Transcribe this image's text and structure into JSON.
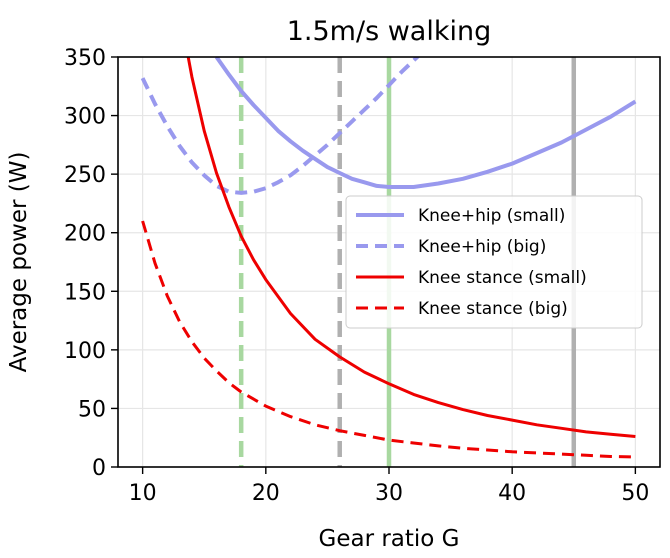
{
  "chart_data": {
    "type": "line",
    "title": "1.5m/s walking",
    "xlabel": "Gear ratio G",
    "ylabel": "Average power (W)",
    "xlim": [
      8,
      52
    ],
    "ylim": [
      0,
      350
    ],
    "xticks": [
      10,
      20,
      30,
      40,
      50
    ],
    "yticks": [
      0,
      50,
      100,
      150,
      200,
      250,
      300,
      350
    ],
    "grid": true,
    "legend": {
      "placement": "center-right"
    },
    "series": [
      {
        "name": "Knee+hip (small)",
        "color": "#9999ee",
        "style": "solid",
        "x": [
          16,
          17,
          18,
          19,
          20,
          21,
          22,
          23,
          24,
          25,
          26,
          27,
          28,
          29,
          30,
          31,
          32,
          34,
          36,
          38,
          40,
          42,
          44,
          46,
          48,
          50
        ],
        "y": [
          350,
          335,
          321,
          309,
          298,
          287,
          278,
          270,
          263,
          256,
          251,
          246,
          243,
          240,
          239,
          239,
          239,
          242,
          246,
          252,
          259,
          268,
          277,
          288,
          299,
          312
        ]
      },
      {
        "name": "Knee+hip (big)",
        "color": "#9999ee",
        "style": "dashed",
        "x": [
          10,
          11,
          12,
          13,
          14,
          15,
          16,
          17,
          18,
          19,
          20,
          21,
          22,
          23,
          24,
          25,
          26,
          27,
          28,
          29,
          30,
          31,
          32,
          33
        ],
        "y": [
          332,
          310,
          291,
          274,
          260,
          249,
          240,
          235,
          234,
          235,
          238,
          243,
          249,
          257,
          266,
          275,
          285,
          295,
          305,
          315,
          326,
          337,
          347,
          357
        ]
      },
      {
        "name": "Knee stance (small)",
        "color": "#ee0000",
        "style": "solid",
        "x": [
          13.7,
          14,
          15,
          16,
          17,
          18,
          19,
          20,
          22,
          24,
          26,
          28,
          30,
          32,
          34,
          36,
          38,
          40,
          42,
          44,
          46,
          48,
          50
        ],
        "y": [
          350,
          333,
          287,
          251,
          222,
          197,
          177,
          160,
          131,
          109,
          94,
          81,
          71,
          62,
          55,
          49,
          44,
          40,
          36,
          33,
          30,
          28,
          26
        ]
      },
      {
        "name": "Knee stance (big)",
        "color": "#ee0000",
        "style": "dashed",
        "x": [
          10,
          11,
          12,
          13,
          14,
          15,
          16,
          17,
          18,
          20,
          22,
          24,
          26,
          28,
          30,
          32,
          34,
          36,
          38,
          40,
          42,
          44,
          46,
          48,
          50
        ],
        "y": [
          210,
          174,
          146,
          124,
          107,
          93,
          82,
          72,
          64,
          52,
          43,
          36,
          31,
          27,
          23,
          20.5,
          18,
          16,
          14.5,
          13,
          12,
          11,
          10,
          9,
          8.5
        ]
      }
    ],
    "vlines": [
      {
        "x": 18,
        "color": "#a8d8a0",
        "style": "dashed"
      },
      {
        "x": 26,
        "color": "#b0b0b0",
        "style": "dashed"
      },
      {
        "x": 30,
        "color": "#a8d8a0",
        "style": "solid"
      },
      {
        "x": 45,
        "color": "#b0b0b0",
        "style": "solid"
      }
    ]
  }
}
